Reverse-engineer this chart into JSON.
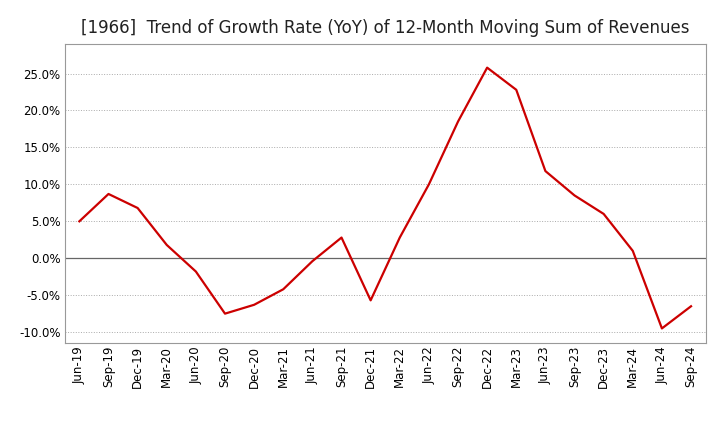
{
  "title": "[1966]  Trend of Growth Rate (YoY) of 12-Month Moving Sum of Revenues",
  "line_color": "#cc0000",
  "background_color": "#ffffff",
  "grid_color": "#aaaaaa",
  "zero_line_color": "#666666",
  "box_color": "#999999",
  "ylim": [
    -0.115,
    0.29
  ],
  "yticks": [
    -0.1,
    -0.05,
    0.0,
    0.05,
    0.1,
    0.15,
    0.2,
    0.25
  ],
  "dates": [
    "Jun-19",
    "Sep-19",
    "Dec-19",
    "Mar-20",
    "Jun-20",
    "Sep-20",
    "Dec-20",
    "Mar-21",
    "Jun-21",
    "Sep-21",
    "Dec-21",
    "Mar-22",
    "Jun-22",
    "Sep-22",
    "Dec-22",
    "Mar-23",
    "Jun-23",
    "Sep-23",
    "Dec-23",
    "Mar-24",
    "Jun-24",
    "Sep-24"
  ],
  "values": [
    0.05,
    0.087,
    0.068,
    0.018,
    -0.018,
    -0.075,
    -0.063,
    -0.042,
    -0.004,
    0.028,
    -0.057,
    0.028,
    0.1,
    0.185,
    0.258,
    0.228,
    0.118,
    0.085,
    0.06,
    0.01,
    -0.095,
    -0.065
  ],
  "title_fontsize": 12,
  "tick_fontsize": 8.5,
  "ytick_fontsize": 8.5
}
